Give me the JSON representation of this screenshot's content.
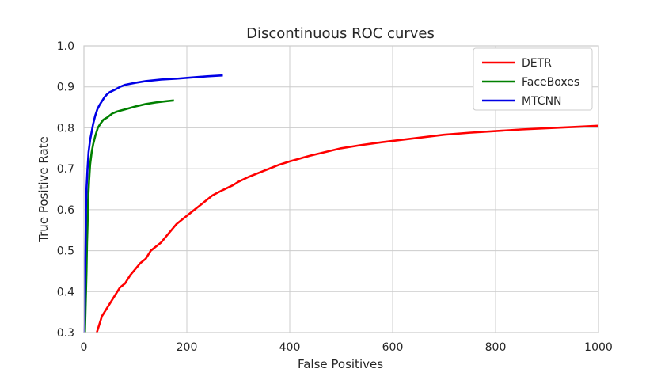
{
  "chart_data": {
    "type": "line",
    "title": "Discontinuous ROC curves",
    "xlabel": "False Positives",
    "ylabel": "True Positive Rate",
    "xlim": [
      0,
      1000
    ],
    "ylim": [
      0.3,
      1.0
    ],
    "xticks": [
      0,
      200,
      400,
      600,
      800,
      1000
    ],
    "yticks": [
      0.3,
      0.4,
      0.5,
      0.6,
      0.7,
      0.8,
      0.9,
      1.0
    ],
    "xtick_labels": [
      "0",
      "200",
      "400",
      "600",
      "800",
      "1000"
    ],
    "ytick_labels": [
      "0.3",
      "0.4",
      "0.5",
      "0.6",
      "0.7",
      "0.8",
      "0.9",
      "1.0"
    ],
    "grid": true,
    "legend_position": "top-right",
    "series": [
      {
        "name": "DETR",
        "color": "#ff0000",
        "x": [
          25,
          30,
          35,
          40,
          50,
          60,
          70,
          80,
          90,
          100,
          110,
          120,
          130,
          140,
          150,
          160,
          170,
          180,
          190,
          200,
          210,
          220,
          230,
          250,
          270,
          290,
          300,
          320,
          340,
          360,
          380,
          400,
          420,
          440,
          460,
          480,
          500,
          540,
          580,
          620,
          660,
          700,
          750,
          800,
          850,
          900,
          950,
          1000
        ],
        "y": [
          0.3,
          0.32,
          0.34,
          0.35,
          0.37,
          0.39,
          0.41,
          0.42,
          0.44,
          0.455,
          0.47,
          0.48,
          0.5,
          0.51,
          0.52,
          0.535,
          0.55,
          0.565,
          0.575,
          0.585,
          0.595,
          0.605,
          0.615,
          0.635,
          0.648,
          0.66,
          0.668,
          0.68,
          0.69,
          0.7,
          0.71,
          0.718,
          0.725,
          0.732,
          0.738,
          0.744,
          0.75,
          0.758,
          0.765,
          0.771,
          0.777,
          0.783,
          0.788,
          0.792,
          0.796,
          0.799,
          0.802,
          0.805
        ]
      },
      {
        "name": "FaceBoxes",
        "color": "#008000",
        "x": [
          2,
          3,
          4,
          5,
          6,
          7,
          8,
          10,
          12,
          15,
          18,
          22,
          27,
          32,
          38,
          45,
          55,
          65,
          80,
          100,
          120,
          140,
          160,
          175
        ],
        "y": [
          0.3,
          0.35,
          0.4,
          0.45,
          0.52,
          0.56,
          0.62,
          0.67,
          0.71,
          0.74,
          0.76,
          0.78,
          0.8,
          0.81,
          0.82,
          0.825,
          0.835,
          0.84,
          0.845,
          0.852,
          0.858,
          0.862,
          0.865,
          0.867
        ]
      },
      {
        "name": "MTCNN",
        "color": "#0000e6",
        "x": [
          1,
          2,
          3,
          4,
          5,
          7,
          9,
          12,
          15,
          18,
          22,
          26,
          30,
          35,
          40,
          45,
          50,
          60,
          70,
          80,
          100,
          120,
          150,
          180,
          210,
          240,
          270
        ],
        "y": [
          0.3,
          0.4,
          0.5,
          0.6,
          0.65,
          0.7,
          0.74,
          0.77,
          0.79,
          0.81,
          0.83,
          0.845,
          0.855,
          0.865,
          0.875,
          0.882,
          0.887,
          0.893,
          0.9,
          0.905,
          0.91,
          0.914,
          0.918,
          0.92,
          0.923,
          0.926,
          0.928
        ]
      }
    ]
  }
}
